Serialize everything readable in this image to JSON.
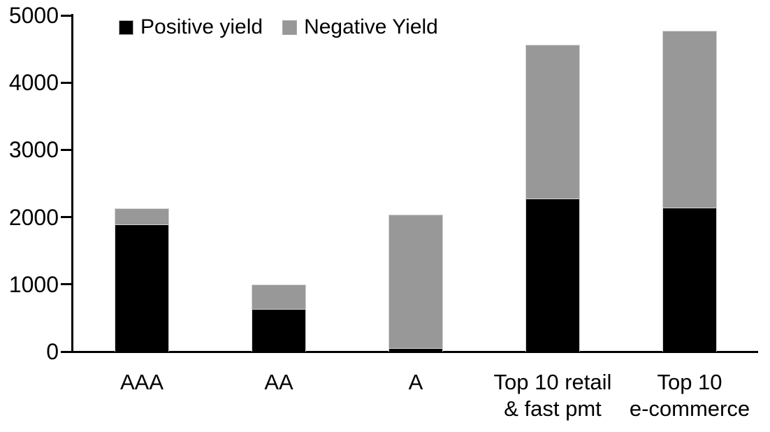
{
  "chart_data": {
    "type": "bar",
    "stacked": true,
    "title": "",
    "xlabel": "",
    "ylabel": "",
    "categories": [
      "AAA",
      "AA",
      "A",
      "Top 10 retail\n& fast pmt",
      "Top 10\ne-commerce"
    ],
    "series": [
      {
        "name": "Positive yield",
        "color": "#000000",
        "values": [
          1890,
          630,
          50,
          2280,
          2140
        ]
      },
      {
        "name": "Negative Yield",
        "color": "#989898",
        "values": [
          240,
          370,
          1990,
          2280,
          2630
        ]
      }
    ],
    "totals": [
      2130,
      1000,
      2040,
      4560,
      4770
    ],
    "ylim": [
      0,
      5000
    ],
    "yticks": [
      0,
      1000,
      2000,
      3000,
      4000,
      5000
    ],
    "grid": false,
    "legend_position": "top-left",
    "colors": {
      "background": "#ffffff",
      "axis": "#000000",
      "bar_border": "#d4d4d4",
      "text": "#000000"
    }
  }
}
